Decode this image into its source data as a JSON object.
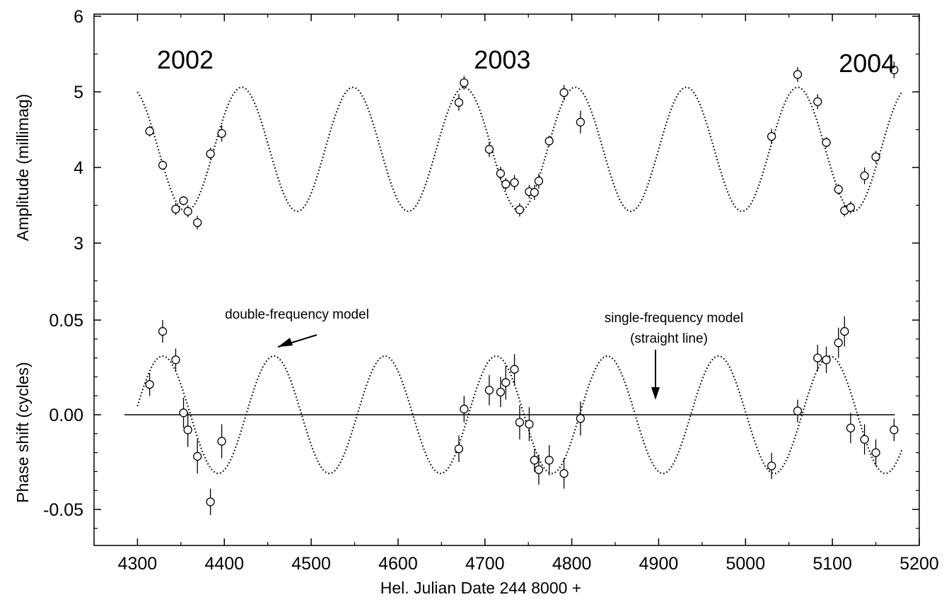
{
  "chart_data": {
    "type": "scatter",
    "xlabel": "Hel. Julian Date 244 8000 +",
    "xlim": [
      4250,
      5200
    ],
    "x_ticks": [
      "4300",
      "4400",
      "4500",
      "4600",
      "4700",
      "4800",
      "4900",
      "5000",
      "5100",
      "5200"
    ],
    "top_panel": {
      "ylabel": "Amplitude (millimag)",
      "ylim": [
        2.3,
        6.0
      ],
      "y_ticks": [
        "3",
        "4",
        "5",
        "6"
      ],
      "year_labels": [
        {
          "text": "2002",
          "x": 4355,
          "y": 5.45
        },
        {
          "text": "2003",
          "x": 4720,
          "y": 5.45
        },
        {
          "text": "2004",
          "x": 5140,
          "y": 5.4
        }
      ],
      "model": {
        "name": "double-frequency model",
        "mean": 4.24,
        "amplitude": 0.82,
        "period": 128,
        "peak_x": 4420,
        "x_range": [
          4300,
          5180
        ]
      },
      "points": [
        {
          "x": 4314,
          "y": 4.48,
          "err": 0.07
        },
        {
          "x": 4329,
          "y": 4.03,
          "err": 0.06
        },
        {
          "x": 4344,
          "y": 3.45,
          "err": 0.08
        },
        {
          "x": 4353,
          "y": 3.56,
          "err": 0.06
        },
        {
          "x": 4358,
          "y": 3.42,
          "err": 0.08
        },
        {
          "x": 4369,
          "y": 3.27,
          "err": 0.09
        },
        {
          "x": 4384,
          "y": 4.18,
          "err": 0.08
        },
        {
          "x": 4397,
          "y": 4.45,
          "err": 0.11
        },
        {
          "x": 4670,
          "y": 4.86,
          "err": 0.11
        },
        {
          "x": 4676,
          "y": 5.12,
          "err": 0.09
        },
        {
          "x": 4705,
          "y": 4.24,
          "err": 0.1
        },
        {
          "x": 4718,
          "y": 3.92,
          "err": 0.09
        },
        {
          "x": 4724,
          "y": 3.78,
          "err": 0.08
        },
        {
          "x": 4734,
          "y": 3.8,
          "err": 0.1
        },
        {
          "x": 4740,
          "y": 3.44,
          "err": 0.09
        },
        {
          "x": 4751,
          "y": 3.68,
          "err": 0.09
        },
        {
          "x": 4757,
          "y": 3.67,
          "err": 0.1
        },
        {
          "x": 4762,
          "y": 3.82,
          "err": 0.1
        },
        {
          "x": 4774,
          "y": 4.35,
          "err": 0.07
        },
        {
          "x": 4791,
          "y": 4.99,
          "err": 0.1
        },
        {
          "x": 4810,
          "y": 4.6,
          "err": 0.15
        },
        {
          "x": 5030,
          "y": 4.41,
          "err": 0.1
        },
        {
          "x": 5060,
          "y": 5.23,
          "err": 0.1
        },
        {
          "x": 5083,
          "y": 4.87,
          "err": 0.1
        },
        {
          "x": 5093,
          "y": 4.33,
          "err": 0.07
        },
        {
          "x": 5107,
          "y": 3.71,
          "err": 0.07
        },
        {
          "x": 5114,
          "y": 3.43,
          "err": 0.08
        },
        {
          "x": 5121,
          "y": 3.47,
          "err": 0.08
        },
        {
          "x": 5137,
          "y": 3.89,
          "err": 0.11
        },
        {
          "x": 5150,
          "y": 4.14,
          "err": 0.08
        },
        {
          "x": 5171,
          "y": 5.29,
          "err": 0.11
        }
      ]
    },
    "bottom_panel": {
      "ylabel": "Phase shift  (cycles)",
      "ylim": [
        -0.07,
        0.1
      ],
      "y_ticks": [
        "-0.05",
        "0.00",
        "0.05"
      ],
      "model": {
        "name": "double-frequency model",
        "mean": 0.0,
        "amplitude": 0.031,
        "period": 128,
        "peak_x": 4457,
        "x_range": [
          4300,
          5180
        ]
      },
      "single_frequency_line": {
        "y": 0.0,
        "x_range": [
          4285,
          5172
        ]
      },
      "points": [
        {
          "x": 4314,
          "y": 0.016,
          "err": 0.006
        },
        {
          "x": 4329,
          "y": 0.044,
          "err": 0.006
        },
        {
          "x": 4344,
          "y": 0.029,
          "err": 0.006
        },
        {
          "x": 4353,
          "y": 0.001,
          "err": 0.008
        },
        {
          "x": 4358,
          "y": -0.008,
          "err": 0.009
        },
        {
          "x": 4369,
          "y": -0.022,
          "err": 0.009
        },
        {
          "x": 4384,
          "y": -0.046,
          "err": 0.007
        },
        {
          "x": 4397,
          "y": -0.014,
          "err": 0.009
        },
        {
          "x": 4670,
          "y": -0.018,
          "err": 0.007
        },
        {
          "x": 4676,
          "y": 0.003,
          "err": 0.007
        },
        {
          "x": 4705,
          "y": 0.013,
          "err": 0.008
        },
        {
          "x": 4718,
          "y": 0.012,
          "err": 0.008
        },
        {
          "x": 4724,
          "y": 0.017,
          "err": 0.009
        },
        {
          "x": 4734,
          "y": 0.024,
          "err": 0.008
        },
        {
          "x": 4740,
          "y": -0.004,
          "err": 0.009
        },
        {
          "x": 4751,
          "y": -0.005,
          "err": 0.009
        },
        {
          "x": 4757,
          "y": -0.024,
          "err": 0.006
        },
        {
          "x": 4762,
          "y": -0.029,
          "err": 0.008
        },
        {
          "x": 4774,
          "y": -0.024,
          "err": 0.008
        },
        {
          "x": 4791,
          "y": -0.031,
          "err": 0.008
        },
        {
          "x": 4810,
          "y": -0.002,
          "err": 0.009
        },
        {
          "x": 5030,
          "y": -0.027,
          "err": 0.007
        },
        {
          "x": 5060,
          "y": 0.002,
          "err": 0.006
        },
        {
          "x": 5083,
          "y": 0.03,
          "err": 0.007
        },
        {
          "x": 5093,
          "y": 0.029,
          "err": 0.007
        },
        {
          "x": 5107,
          "y": 0.038,
          "err": 0.008
        },
        {
          "x": 5114,
          "y": 0.044,
          "err": 0.008
        },
        {
          "x": 5121,
          "y": -0.007,
          "err": 0.008
        },
        {
          "x": 5137,
          "y": -0.013,
          "err": 0.008
        },
        {
          "x": 5150,
          "y": -0.02,
          "err": 0.007
        },
        {
          "x": 5171,
          "y": -0.008,
          "err": 0.006
        }
      ]
    },
    "annotations": {
      "double_frequency": {
        "lines": [
          "double-frequency model"
        ]
      },
      "single_frequency": {
        "lines": [
          "single-frequency model",
          "(straight line)"
        ]
      }
    }
  }
}
